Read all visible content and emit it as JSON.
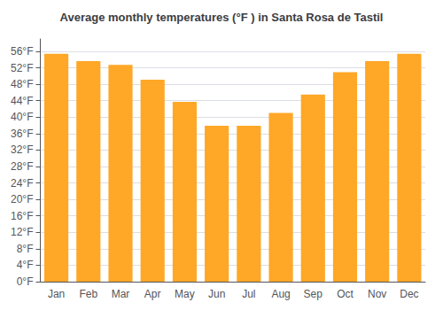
{
  "chart_data": {
    "type": "bar",
    "title": "Average monthly temperatures (°F ) in Santa Rosa de Tastil",
    "categories": [
      "Jan",
      "Feb",
      "Mar",
      "Apr",
      "May",
      "Jun",
      "Jul",
      "Aug",
      "Sep",
      "Oct",
      "Nov",
      "Dec"
    ],
    "values": [
      55.4,
      53.6,
      52.7,
      49.1,
      43.7,
      37.9,
      37.9,
      41.0,
      45.5,
      50.9,
      53.6,
      55.4
    ],
    "color": "#FFA726",
    "ylim": [
      0,
      59
    ],
    "yticks": [
      {
        "value": 0,
        "label": "0°F"
      },
      {
        "value": 4,
        "label": "4°F"
      },
      {
        "value": 8,
        "label": "8°F"
      },
      {
        "value": 12,
        "label": "12°F"
      },
      {
        "value": 16,
        "label": "16°F"
      },
      {
        "value": 20,
        "label": "20°F"
      },
      {
        "value": 24,
        "label": "24°F"
      },
      {
        "value": 28,
        "label": "28°F"
      },
      {
        "value": 32,
        "label": "32°F"
      },
      {
        "value": 36,
        "label": "36°F"
      },
      {
        "value": 40,
        "label": "40°F"
      },
      {
        "value": 44,
        "label": "44°F"
      },
      {
        "value": 48,
        "label": "48°F"
      },
      {
        "value": 52,
        "label": "52°F"
      },
      {
        "value": 56,
        "label": "56°F"
      }
    ],
    "grid": true
  }
}
